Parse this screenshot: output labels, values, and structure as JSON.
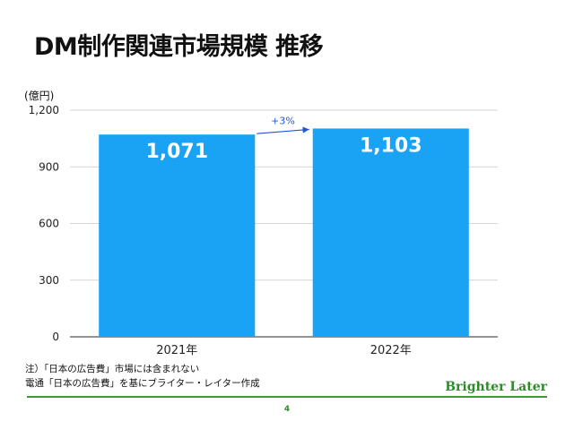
{
  "slide": {
    "title": "DM制作関連市場規模 推移",
    "unit": "(億円)",
    "notes": [
      "注）「日本の広告費」市場には含まれない",
      "電通「日本の広告費」を基にブライター・レイター作成"
    ],
    "brand": "Brighter Later",
    "page_number": "4"
  },
  "colors": {
    "bar": "#1aa3f5",
    "arrow": "#2255d8",
    "brand": "#2f8a2a"
  },
  "chart_data": {
    "type": "bar",
    "categories": [
      "2021年",
      "2022年"
    ],
    "values": [
      1071,
      1103
    ],
    "value_labels": [
      "1,071",
      "1,103"
    ],
    "ylim": [
      0,
      1200
    ],
    "yticks": [
      0,
      300,
      600,
      900,
      1200
    ],
    "ytick_labels": [
      "0",
      "300",
      "600",
      "900",
      "1,200"
    ],
    "grid": true,
    "annotation": "+3%"
  }
}
